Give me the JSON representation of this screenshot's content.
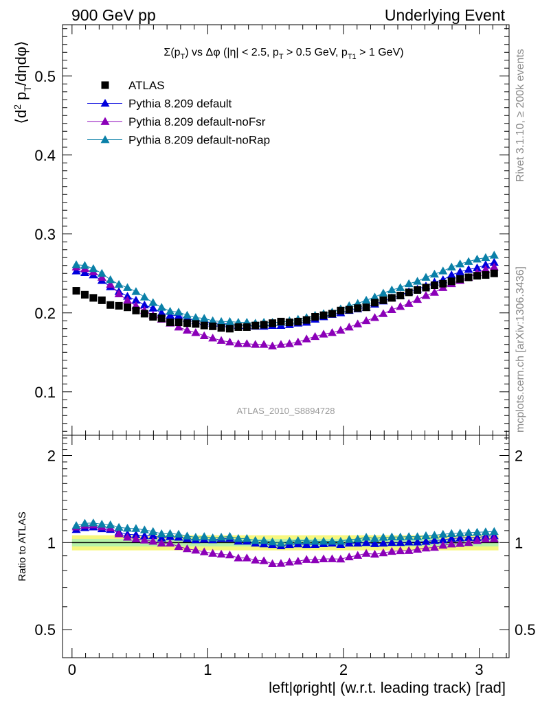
{
  "header": {
    "left": "900 GeV pp",
    "right": "Underlying Event"
  },
  "side_labels": {
    "rivet": "Rivet 3.1.10, ≥ 200k events",
    "mcplots": "mcplots.cern.ch [arXiv:1306.3436]"
  },
  "watermark": "ATLAS_2010_S8894728",
  "colors": {
    "atlas": "#000000",
    "default": "#0000dd",
    "noFsr": "#8b00b8",
    "noRap": "#0a80a8",
    "band_inner": "#b6f2a8",
    "band_outer": "#f7f77d"
  },
  "chart_data": [
    {
      "type": "scatter",
      "title": "Σ(pT) vs Δφ (|η| < 2.5, pT > 0.5 GeV, pT1 > 1 GeV)",
      "ylabel": "⟨d² pT/dηdφ⟩",
      "ylim": [
        0.045,
        0.565
      ],
      "xlim": [
        -0.07,
        3.22
      ],
      "yticks": [
        0.1,
        0.2,
        0.3,
        0.4,
        0.5
      ],
      "ytick_labels": [
        "0.1",
        "0.2",
        "0.3",
        "0.4",
        "0.5"
      ],
      "legend_position": "top-left",
      "x": [
        0.0314,
        0.0942,
        0.157,
        0.2199,
        0.2827,
        0.3456,
        0.4084,
        0.4712,
        0.5341,
        0.5969,
        0.6597,
        0.7226,
        0.7854,
        0.8482,
        0.9111,
        0.9739,
        1.0367,
        1.0996,
        1.1624,
        1.2252,
        1.2881,
        1.3509,
        1.4137,
        1.4765,
        1.5394,
        1.6022,
        1.665,
        1.7279,
        1.7907,
        1.8535,
        1.9164,
        1.9792,
        2.042,
        2.1049,
        2.1677,
        2.2305,
        2.2934,
        2.3562,
        2.419,
        2.4819,
        2.5447,
        2.6075,
        2.6704,
        2.7332,
        2.796,
        2.8588,
        2.9217,
        2.9845,
        3.0473,
        3.1102
      ],
      "series": [
        {
          "name": "ATLAS",
          "marker": "square",
          "values": [
            0.228,
            0.223,
            0.219,
            0.216,
            0.21,
            0.209,
            0.207,
            0.203,
            0.199,
            0.195,
            0.193,
            0.188,
            0.188,
            0.187,
            0.186,
            0.184,
            0.183,
            0.181,
            0.18,
            0.182,
            0.182,
            0.184,
            0.185,
            0.187,
            0.189,
            0.188,
            0.189,
            0.191,
            0.195,
            0.197,
            0.199,
            0.203,
            0.204,
            0.206,
            0.207,
            0.213,
            0.216,
            0.219,
            0.222,
            0.226,
            0.229,
            0.232,
            0.235,
            0.237,
            0.24,
            0.243,
            0.245,
            0.247,
            0.248,
            0.25
          ]
        },
        {
          "name": "Pythia 8.209 default",
          "marker": "triangle",
          "values": [
            0.253,
            0.251,
            0.248,
            0.241,
            0.233,
            0.227,
            0.221,
            0.216,
            0.21,
            0.206,
            0.2,
            0.197,
            0.196,
            0.193,
            0.19,
            0.189,
            0.187,
            0.187,
            0.186,
            0.184,
            0.184,
            0.183,
            0.183,
            0.184,
            0.184,
            0.185,
            0.187,
            0.188,
            0.192,
            0.195,
            0.198,
            0.2,
            0.203,
            0.205,
            0.207,
            0.211,
            0.215,
            0.219,
            0.222,
            0.227,
            0.23,
            0.234,
            0.239,
            0.242,
            0.248,
            0.252,
            0.255,
            0.257,
            0.261,
            0.264
          ]
        },
        {
          "name": "Pythia 8.209 default-noFsr",
          "marker": "triangle",
          "values": [
            0.258,
            0.256,
            0.252,
            0.245,
            0.236,
            0.224,
            0.216,
            0.209,
            0.203,
            0.197,
            0.192,
            0.187,
            0.182,
            0.178,
            0.175,
            0.171,
            0.168,
            0.165,
            0.163,
            0.161,
            0.161,
            0.16,
            0.16,
            0.158,
            0.16,
            0.161,
            0.163,
            0.167,
            0.17,
            0.173,
            0.175,
            0.178,
            0.182,
            0.186,
            0.19,
            0.194,
            0.199,
            0.204,
            0.208,
            0.212,
            0.217,
            0.222,
            0.226,
            0.232,
            0.237,
            0.241,
            0.245,
            0.251,
            0.255,
            0.258
          ]
        },
        {
          "name": "Pythia 8.209 default-noRap",
          "marker": "triangle",
          "values": [
            0.261,
            0.26,
            0.256,
            0.25,
            0.242,
            0.236,
            0.232,
            0.227,
            0.22,
            0.213,
            0.207,
            0.202,
            0.201,
            0.197,
            0.194,
            0.193,
            0.19,
            0.189,
            0.189,
            0.188,
            0.188,
            0.187,
            0.188,
            0.188,
            0.188,
            0.19,
            0.192,
            0.194,
            0.197,
            0.199,
            0.201,
            0.205,
            0.209,
            0.212,
            0.216,
            0.22,
            0.225,
            0.229,
            0.232,
            0.237,
            0.24,
            0.245,
            0.249,
            0.253,
            0.258,
            0.262,
            0.265,
            0.268,
            0.27,
            0.273
          ]
        }
      ]
    },
    {
      "type": "scatter",
      "ylabel": "Ratio to ATLAS",
      "xlabel": "left|φright| (w.r.t. leading track) [rad]",
      "ylim": [
        0.4,
        2.35
      ],
      "xlim": [
        -0.07,
        3.22
      ],
      "log_y": true,
      "xticks": [
        0,
        1,
        2,
        3
      ],
      "xtick_labels": [
        "0",
        "1",
        "2",
        "3"
      ],
      "yticks": [
        0.5,
        1,
        2
      ],
      "ytick_labels": [
        "0.5",
        "1",
        "2"
      ],
      "reference_line": 1.0,
      "uncertainty_band": {
        "inner": [
          0.97,
          1.03
        ],
        "outer": [
          0.94,
          1.06
        ]
      },
      "series": [
        {
          "name": "Pythia 8.209 default",
          "values": [
            1.109,
            1.126,
            1.132,
            1.116,
            1.11,
            1.086,
            1.068,
            1.064,
            1.055,
            1.056,
            1.036,
            1.048,
            1.043,
            1.032,
            1.022,
            1.027,
            1.022,
            1.033,
            1.033,
            1.011,
            1.011,
            0.995,
            0.989,
            0.984,
            0.974,
            0.984,
            0.989,
            0.984,
            0.985,
            0.99,
            0.995,
            0.985,
            0.995,
            0.995,
            1.0,
            0.991,
            0.995,
            1.0,
            1.0,
            1.004,
            1.004,
            1.009,
            1.017,
            1.021,
            1.033,
            1.037,
            1.041,
            1.04,
            1.052,
            1.056
          ]
        },
        {
          "name": "Pythia 8.209 default-noFsr",
          "values": [
            1.132,
            1.148,
            1.151,
            1.134,
            1.124,
            1.072,
            1.043,
            1.03,
            1.02,
            1.01,
            0.995,
            0.995,
            0.968,
            0.952,
            0.941,
            0.929,
            0.918,
            0.912,
            0.906,
            0.885,
            0.885,
            0.87,
            0.865,
            0.845,
            0.847,
            0.856,
            0.862,
            0.874,
            0.872,
            0.878,
            0.879,
            0.877,
            0.892,
            0.903,
            0.918,
            0.911,
            0.921,
            0.932,
            0.937,
            0.938,
            0.948,
            0.957,
            0.962,
            0.979,
            0.988,
            0.992,
            1.0,
            1.016,
            1.028,
            1.032
          ]
        },
        {
          "name": "Pythia 8.209 default-noRap",
          "values": [
            1.145,
            1.166,
            1.169,
            1.157,
            1.152,
            1.129,
            1.121,
            1.118,
            1.106,
            1.092,
            1.073,
            1.074,
            1.069,
            1.053,
            1.043,
            1.049,
            1.038,
            1.044,
            1.05,
            1.033,
            1.033,
            1.016,
            1.016,
            1.005,
            0.995,
            1.011,
            1.016,
            1.016,
            1.01,
            1.01,
            1.01,
            1.01,
            1.025,
            1.029,
            1.043,
            1.033,
            1.042,
            1.046,
            1.045,
            1.049,
            1.048,
            1.056,
            1.06,
            1.068,
            1.075,
            1.078,
            1.082,
            1.085,
            1.089,
            1.092
          ]
        }
      ]
    }
  ]
}
